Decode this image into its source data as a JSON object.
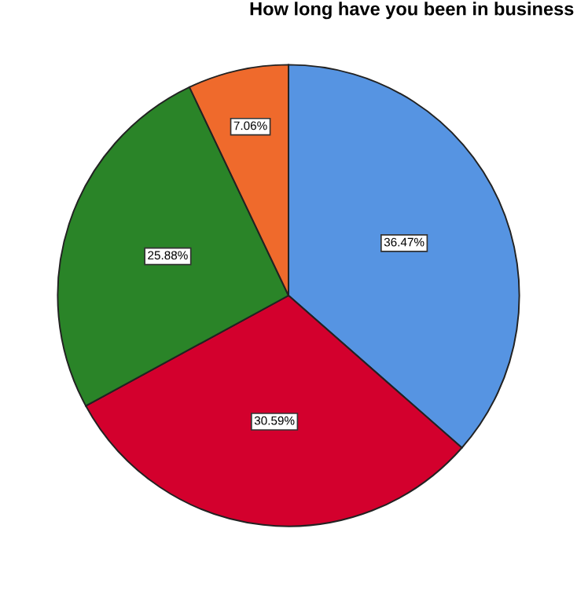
{
  "chart_data": {
    "type": "pie",
    "title": "How long have you been in business",
    "categories": [
      null,
      null,
      null,
      null
    ],
    "values": [
      36.47,
      30.59,
      25.88,
      7.06
    ],
    "colors": [
      "#5694e2",
      "#d3002d",
      "#2a8428",
      "#ef6a2c"
    ],
    "value_labels": [
      "36.47%",
      "30.59%",
      "25.88%",
      "7.06%"
    ],
    "legend": false
  }
}
